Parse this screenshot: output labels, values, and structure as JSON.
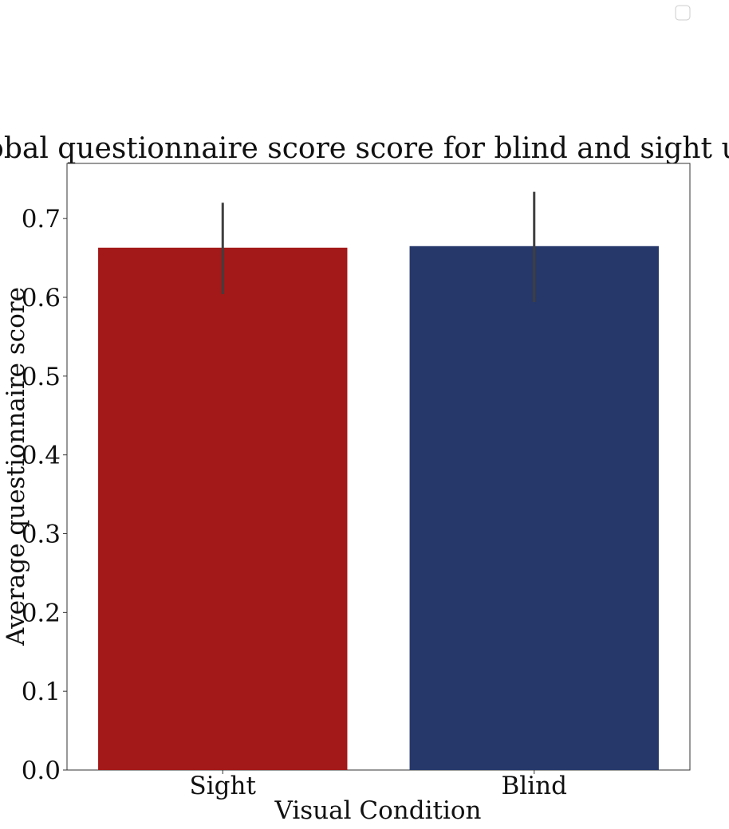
{
  "chart_data": {
    "type": "bar",
    "title": "Global questionnaire score score for blind and sight users",
    "xlabel": "Visual Condition",
    "ylabel": "Average questionnaire score",
    "categories": [
      "Sight",
      "Blind"
    ],
    "values": [
      0.663,
      0.665
    ],
    "error_bars": [
      {
        "low": 0.604,
        "high": 0.72
      },
      {
        "low": 0.594,
        "high": 0.734
      }
    ],
    "colors": [
      "#a31818",
      "#26386a"
    ],
    "error_color": "#3f3f3f",
    "ylim": [
      0,
      0.77
    ],
    "yticks": [
      "0.0",
      "0.1",
      "0.2",
      "0.3",
      "0.4",
      "0.5",
      "0.6",
      "0.7"
    ],
    "ytick_values": [
      0,
      0.1,
      0.2,
      0.3,
      0.4,
      0.5,
      0.6,
      0.7
    ],
    "grid": false,
    "legend": {
      "placement": "top-right",
      "entries": []
    }
  }
}
